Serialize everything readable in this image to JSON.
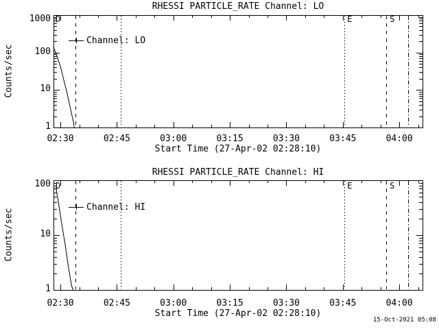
{
  "page": {
    "bg": "#ffffff",
    "fg": "#000000",
    "timestamp": "15-Oct-2021 05:08"
  },
  "chart_data": [
    {
      "type": "line",
      "title": "RHESSI PARTICLE_RATE Channel: LO",
      "ylabel": "Counts/sec",
      "xlabel": "Start Time (27-Apr-02 02:28:10)",
      "ylim": [
        1,
        1000
      ],
      "grid": false,
      "legend_position": "upper-left-inside",
      "x_range_seconds": [
        0,
        5880
      ],
      "x_minor_seconds": 300,
      "xticks": [
        {
          "label": "02:30",
          "t": 110
        },
        {
          "label": "02:45",
          "t": 1010
        },
        {
          "label": "03:00",
          "t": 1910
        },
        {
          "label": "03:15",
          "t": 2810
        },
        {
          "label": "03:30",
          "t": 3710
        },
        {
          "label": "03:45",
          "t": 4610
        },
        {
          "label": "04:00",
          "t": 5510
        }
      ],
      "yticks": [
        {
          "label": "1000",
          "v": 1000
        },
        {
          "label": "100",
          "v": 100
        },
        {
          "label": "10",
          "v": 10
        },
        {
          "label": "1",
          "v": 1
        }
      ],
      "legend": {
        "label": "Channel: LO"
      },
      "flags": [
        {
          "label": "D",
          "t": 22
        },
        {
          "label": "E",
          "t": 4668
        },
        {
          "label": "S",
          "t": 5346
        }
      ],
      "vlines": [
        {
          "style": "dashed",
          "t": 350
        },
        {
          "style": "dotted",
          "t": 1070
        },
        {
          "style": "dotted",
          "t": 4636
        },
        {
          "style": "dashed",
          "t": 5303
        },
        {
          "style": "dashdot",
          "t": 5653
        }
      ],
      "series": [
        {
          "name": "Channel: LO",
          "points": [
            [
              0,
              136
            ],
            [
              55,
              81
            ],
            [
              109,
              43
            ],
            [
              164,
              18.5
            ],
            [
              219,
              8.0
            ],
            [
              273,
              3.0
            ],
            [
              320,
              1.33
            ],
            [
              330,
              1.0
            ]
          ]
        }
      ]
    },
    {
      "type": "line",
      "title": "RHESSI PARTICLE_RATE Channel: HI",
      "ylabel": "Counts/sec",
      "xlabel": "Start Time (27-Apr-02 02:28:10)",
      "ylim": [
        1,
        100
      ],
      "grid": false,
      "legend_position": "upper-left-inside",
      "x_range_seconds": [
        0,
        5880
      ],
      "x_minor_seconds": 300,
      "xticks": [
        {
          "label": "02:30",
          "t": 110
        },
        {
          "label": "02:45",
          "t": 1010
        },
        {
          "label": "03:00",
          "t": 1910
        },
        {
          "label": "03:15",
          "t": 2810
        },
        {
          "label": "03:30",
          "t": 3710
        },
        {
          "label": "03:45",
          "t": 4610
        },
        {
          "label": "04:00",
          "t": 5510
        }
      ],
      "yticks": [
        {
          "label": "100",
          "v": 100
        },
        {
          "label": "10",
          "v": 10
        },
        {
          "label": "1",
          "v": 1
        }
      ],
      "legend": {
        "label": "Channel: HI"
      },
      "flags": [
        {
          "label": "D",
          "t": 22
        },
        {
          "label": "E",
          "t": 4668
        },
        {
          "label": "S",
          "t": 5346
        }
      ],
      "vlines": [
        {
          "style": "dashed",
          "t": 350
        },
        {
          "style": "dotted",
          "t": 1070
        },
        {
          "style": "dotted",
          "t": 4636
        },
        {
          "style": "dashed",
          "t": 5303
        },
        {
          "style": "dashdot",
          "t": 5653
        }
      ],
      "series": [
        {
          "name": "Channel: HI",
          "points": [
            [
              40,
              73
            ],
            [
              77,
              41
            ],
            [
              131,
              16
            ],
            [
              186,
              6.7
            ],
            [
              240,
              2.5
            ],
            [
              287,
              1.2
            ],
            [
              314,
              1.0
            ]
          ]
        }
      ]
    }
  ]
}
